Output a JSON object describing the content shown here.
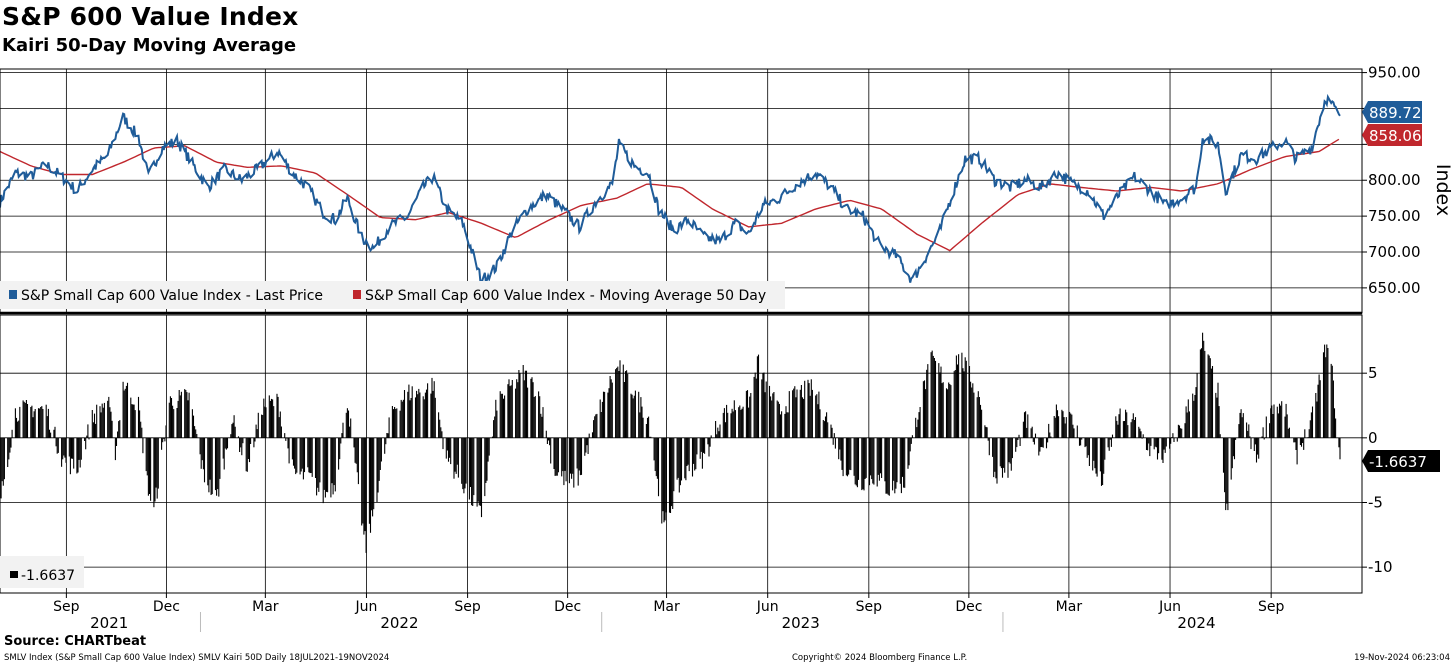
{
  "title": "S&P 600 Value Index",
  "subtitle": "Kairi 50-Day Moving Average",
  "source": "Source: CHARTbeat",
  "footer": {
    "left": "SMLV Index (S&P Small Cap 600 Value Index) SMLV Kairi 50D  Daily 18JUL2021-19NOV2024",
    "center": "Copyright© 2024 Bloomberg Finance L.P.",
    "right": "19-Nov-2024 06:23:04"
  },
  "colors": {
    "price": "#1f5c99",
    "ma": "#c0272d",
    "kairi": "#000000",
    "grid": "#000000"
  },
  "chart_data": [
    {
      "type": "line",
      "ylabel": "Index",
      "ylim": [
        615,
        955
      ],
      "yticks": [
        "950.00",
        "800.00",
        "750.00",
        "700.00",
        "650.00"
      ],
      "xlim": [
        "2021-07-19",
        "2024-11-19"
      ],
      "x_month_ticks": [
        "Sep",
        "Dec",
        "Mar",
        "Jun",
        "Sep",
        "Dec",
        "Mar",
        "Jun",
        "Sep",
        "Dec",
        "Mar",
        "Jun",
        "Sep"
      ],
      "x_year_labels": [
        "2021",
        "2022",
        "2023",
        "2024"
      ],
      "grid": true,
      "legend_position": "bottom-left",
      "series": [
        {
          "name": "S&P Small Cap 600 Value Index - Last Price",
          "last_label": "889.72",
          "points": [
            [
              "2021-07-19",
              770
            ],
            [
              "2021-08-02",
              810
            ],
            [
              "2021-08-16",
              805
            ],
            [
              "2021-08-30",
              822
            ],
            [
              "2021-09-13",
              805
            ],
            [
              "2021-09-27",
              785
            ],
            [
              "2021-10-11",
              815
            ],
            [
              "2021-10-25",
              835
            ],
            [
              "2021-11-08",
              888
            ],
            [
              "2021-11-22",
              860
            ],
            [
              "2021-12-01",
              805
            ],
            [
              "2021-12-13",
              845
            ],
            [
              "2021-12-27",
              855
            ],
            [
              "2022-01-07",
              830
            ],
            [
              "2022-01-24",
              790
            ],
            [
              "2022-02-08",
              815
            ],
            [
              "2022-02-24",
              800
            ],
            [
              "2022-03-10",
              815
            ],
            [
              "2022-03-29",
              840
            ],
            [
              "2022-04-11",
              810
            ],
            [
              "2022-04-25",
              790
            ],
            [
              "2022-05-09",
              755
            ],
            [
              "2022-05-20",
              745
            ],
            [
              "2022-05-31",
              775
            ],
            [
              "2022-06-13",
              720
            ],
            [
              "2022-06-24",
              705
            ],
            [
              "2022-07-08",
              735
            ],
            [
              "2022-07-25",
              750
            ],
            [
              "2022-08-08",
              790
            ],
            [
              "2022-08-17",
              805
            ],
            [
              "2022-08-29",
              760
            ],
            [
              "2022-09-13",
              740
            ],
            [
              "2022-09-30",
              660
            ],
            [
              "2022-10-14",
              680
            ],
            [
              "2022-10-28",
              730
            ],
            [
              "2022-11-11",
              760
            ],
            [
              "2022-11-28",
              780
            ],
            [
              "2022-12-12",
              760
            ],
            [
              "2022-12-28",
              735
            ],
            [
              "2023-01-12",
              770
            ],
            [
              "2023-01-27",
              795
            ],
            [
              "2023-02-02",
              850
            ],
            [
              "2023-02-16",
              820
            ],
            [
              "2023-03-01",
              810
            ],
            [
              "2023-03-10",
              760
            ],
            [
              "2023-03-24",
              730
            ],
            [
              "2023-04-06",
              745
            ],
            [
              "2023-04-21",
              720
            ],
            [
              "2023-05-05",
              715
            ],
            [
              "2023-05-19",
              740
            ],
            [
              "2023-05-31",
              725
            ],
            [
              "2023-06-13",
              765
            ],
            [
              "2023-06-28",
              775
            ],
            [
              "2023-07-14",
              795
            ],
            [
              "2023-07-31",
              810
            ],
            [
              "2023-08-14",
              790
            ],
            [
              "2023-08-28",
              760
            ],
            [
              "2023-09-12",
              750
            ],
            [
              "2023-09-27",
              710
            ],
            [
              "2023-10-12",
              695
            ],
            [
              "2023-10-27",
              660
            ],
            [
              "2023-11-07",
              690
            ],
            [
              "2023-11-20",
              725
            ],
            [
              "2023-12-01",
              775
            ],
            [
              "2023-12-14",
              830
            ],
            [
              "2023-12-27",
              830
            ],
            [
              "2024-01-10",
              800
            ],
            [
              "2024-01-24",
              790
            ],
            [
              "2024-02-07",
              800
            ],
            [
              "2024-02-21",
              790
            ],
            [
              "2024-03-07",
              810
            ],
            [
              "2024-03-21",
              795
            ],
            [
              "2024-04-04",
              785
            ],
            [
              "2024-04-18",
              750
            ],
            [
              "2024-05-02",
              780
            ],
            [
              "2024-05-16",
              805
            ],
            [
              "2024-05-31",
              785
            ],
            [
              "2024-06-13",
              765
            ],
            [
              "2024-06-28",
              775
            ],
            [
              "2024-07-11",
              790
            ],
            [
              "2024-07-17",
              860
            ],
            [
              "2024-07-31",
              850
            ],
            [
              "2024-08-07",
              785
            ],
            [
              "2024-08-21",
              835
            ],
            [
              "2024-09-04",
              830
            ],
            [
              "2024-09-18",
              845
            ],
            [
              "2024-09-30",
              855
            ],
            [
              "2024-10-10",
              830
            ],
            [
              "2024-10-24",
              845
            ],
            [
              "2024-11-06",
              915
            ],
            [
              "2024-11-12",
              905
            ],
            [
              "2024-11-19",
              889.72
            ]
          ]
        },
        {
          "name": "S&P Small Cap 600 Value Index - Moving Average 50 Day",
          "last_label": "858.06",
          "points": [
            [
              "2021-07-19",
              840
            ],
            [
              "2021-08-16",
              820
            ],
            [
              "2021-09-13",
              808
            ],
            [
              "2021-10-11",
              808
            ],
            [
              "2021-11-08",
              825
            ],
            [
              "2021-12-06",
              845
            ],
            [
              "2022-01-03",
              848
            ],
            [
              "2022-02-01",
              825
            ],
            [
              "2022-03-01",
              818
            ],
            [
              "2022-04-01",
              820
            ],
            [
              "2022-05-02",
              810
            ],
            [
              "2022-05-31",
              780
            ],
            [
              "2022-06-30",
              748
            ],
            [
              "2022-08-01",
              745
            ],
            [
              "2022-08-31",
              755
            ],
            [
              "2022-09-30",
              740
            ],
            [
              "2022-10-31",
              720
            ],
            [
              "2022-12-01",
              745
            ],
            [
              "2022-12-30",
              765
            ],
            [
              "2023-01-31",
              775
            ],
            [
              "2023-02-28",
              795
            ],
            [
              "2023-03-31",
              790
            ],
            [
              "2023-04-28",
              760
            ],
            [
              "2023-05-31",
              735
            ],
            [
              "2023-06-30",
              740
            ],
            [
              "2023-07-31",
              760
            ],
            [
              "2023-08-31",
              772
            ],
            [
              "2023-09-29",
              760
            ],
            [
              "2023-10-31",
              725
            ],
            [
              "2023-11-30",
              702
            ],
            [
              "2023-12-29",
              740
            ],
            [
              "2024-01-31",
              780
            ],
            [
              "2024-02-29",
              795
            ],
            [
              "2024-03-28",
              790
            ],
            [
              "2024-04-30",
              785
            ],
            [
              "2024-05-31",
              790
            ],
            [
              "2024-06-28",
              785
            ],
            [
              "2024-07-31",
              795
            ],
            [
              "2024-08-30",
              815
            ],
            [
              "2024-09-30",
              833
            ],
            [
              "2024-10-31",
              840
            ],
            [
              "2024-11-19",
              858.06
            ]
          ]
        }
      ]
    },
    {
      "type": "bar",
      "ylim": [
        -12,
        9.5
      ],
      "yticks": [
        "5",
        "0",
        "-5",
        "-10"
      ],
      "grid": true,
      "series": [
        {
          "name": "-1.6637",
          "last_label": "-1.6637",
          "points": [
            [
              "2021-07-19",
              -5
            ],
            [
              "2021-08-02",
              2.0
            ],
            [
              "2021-08-16",
              2.3
            ],
            [
              "2021-08-30",
              2.2
            ],
            [
              "2021-09-13",
              -1.5
            ],
            [
              "2021-09-27",
              -2.5
            ],
            [
              "2021-10-11",
              1.5
            ],
            [
              "2021-10-25",
              3.0
            ],
            [
              "2021-11-01",
              -1.0
            ],
            [
              "2021-11-08",
              4.2
            ],
            [
              "2021-11-22",
              2.5
            ],
            [
              "2021-11-30",
              -3.5
            ],
            [
              "2021-12-06",
              -5.8
            ],
            [
              "2021-12-20",
              2.8
            ],
            [
              "2022-01-07",
              3.2
            ],
            [
              "2022-01-20",
              -2.8
            ],
            [
              "2022-02-01",
              -4.8
            ],
            [
              "2022-02-15",
              1.5
            ],
            [
              "2022-03-01",
              -2.2
            ],
            [
              "2022-03-15",
              2.5
            ],
            [
              "2022-03-29",
              2.8
            ],
            [
              "2022-04-12",
              -2.8
            ],
            [
              "2022-04-26",
              -3.0
            ],
            [
              "2022-05-09",
              -4.5
            ],
            [
              "2022-05-20",
              -3.5
            ],
            [
              "2022-05-31",
              3.0
            ],
            [
              "2022-06-14",
              -7.0
            ],
            [
              "2022-06-17",
              -8.5
            ],
            [
              "2022-06-28",
              -3.8
            ],
            [
              "2022-07-11",
              2.2
            ],
            [
              "2022-07-25",
              3.5
            ],
            [
              "2022-08-08",
              3.5
            ],
            [
              "2022-08-17",
              4.2
            ],
            [
              "2022-08-29",
              -1.5
            ],
            [
              "2022-09-13",
              -3.5
            ],
            [
              "2022-09-26",
              -5.5
            ],
            [
              "2022-09-30",
              -6.0
            ],
            [
              "2022-10-14",
              2.8
            ],
            [
              "2022-10-28",
              4.0
            ],
            [
              "2022-11-07",
              5.0
            ],
            [
              "2022-11-21",
              3.5
            ],
            [
              "2022-12-05",
              -2.5
            ],
            [
              "2022-12-19",
              -3.5
            ],
            [
              "2022-12-28",
              -3.0
            ],
            [
              "2023-01-12",
              1.5
            ],
            [
              "2023-01-26",
              4.5
            ],
            [
              "2023-02-02",
              5.5
            ],
            [
              "2023-02-16",
              3.5
            ],
            [
              "2023-03-01",
              1.5
            ],
            [
              "2023-03-09",
              -3.5
            ],
            [
              "2023-03-15",
              -7.0
            ],
            [
              "2023-03-24",
              -4.5
            ],
            [
              "2023-04-06",
              -2.5
            ],
            [
              "2023-04-21",
              -1.5
            ],
            [
              "2023-05-05",
              1.5
            ],
            [
              "2023-05-19",
              2.5
            ],
            [
              "2023-06-01",
              3.0
            ],
            [
              "2023-06-09",
              6.0
            ],
            [
              "2023-06-13",
              4.5
            ],
            [
              "2023-06-28",
              2.0
            ],
            [
              "2023-07-14",
              3.5
            ],
            [
              "2023-07-28",
              3.8
            ],
            [
              "2023-08-11",
              1.5
            ],
            [
              "2023-08-25",
              -2.2
            ],
            [
              "2023-09-08",
              -3.5
            ],
            [
              "2023-09-22",
              -3.0
            ],
            [
              "2023-10-06",
              -4.0
            ],
            [
              "2023-10-20",
              -3.5
            ],
            [
              "2023-11-02",
              2.5
            ],
            [
              "2023-11-14",
              6.2
            ],
            [
              "2023-11-28",
              4.0
            ],
            [
              "2023-12-08",
              6.5
            ],
            [
              "2023-12-14",
              5.5
            ],
            [
              "2023-12-28",
              3.0
            ],
            [
              "2024-01-10",
              -2.8
            ],
            [
              "2024-01-24",
              -2.5
            ],
            [
              "2024-02-07",
              1.5
            ],
            [
              "2024-02-21",
              -1.5
            ],
            [
              "2024-03-07",
              2.5
            ],
            [
              "2024-03-21",
              1.2
            ],
            [
              "2024-04-04",
              -1.5
            ],
            [
              "2024-04-16",
              -3.5
            ],
            [
              "2024-04-30",
              1.5
            ],
            [
              "2024-05-14",
              1.5
            ],
            [
              "2024-05-31",
              -1.0
            ],
            [
              "2024-06-13",
              -1.5
            ],
            [
              "2024-06-28",
              1.0
            ],
            [
              "2024-07-11",
              4.0
            ],
            [
              "2024-07-17",
              7.5
            ],
            [
              "2024-07-31",
              3.5
            ],
            [
              "2024-08-07",
              -6.2
            ],
            [
              "2024-08-21",
              2.2
            ],
            [
              "2024-09-04",
              -1.5
            ],
            [
              "2024-09-18",
              2.5
            ],
            [
              "2024-09-30",
              2.2
            ],
            [
              "2024-10-10",
              -1.5
            ],
            [
              "2024-10-24",
              1.2
            ],
            [
              "2024-11-06",
              7.0
            ],
            [
              "2024-11-11",
              5.8
            ],
            [
              "2024-11-19",
              -1.6637
            ]
          ]
        }
      ]
    }
  ]
}
